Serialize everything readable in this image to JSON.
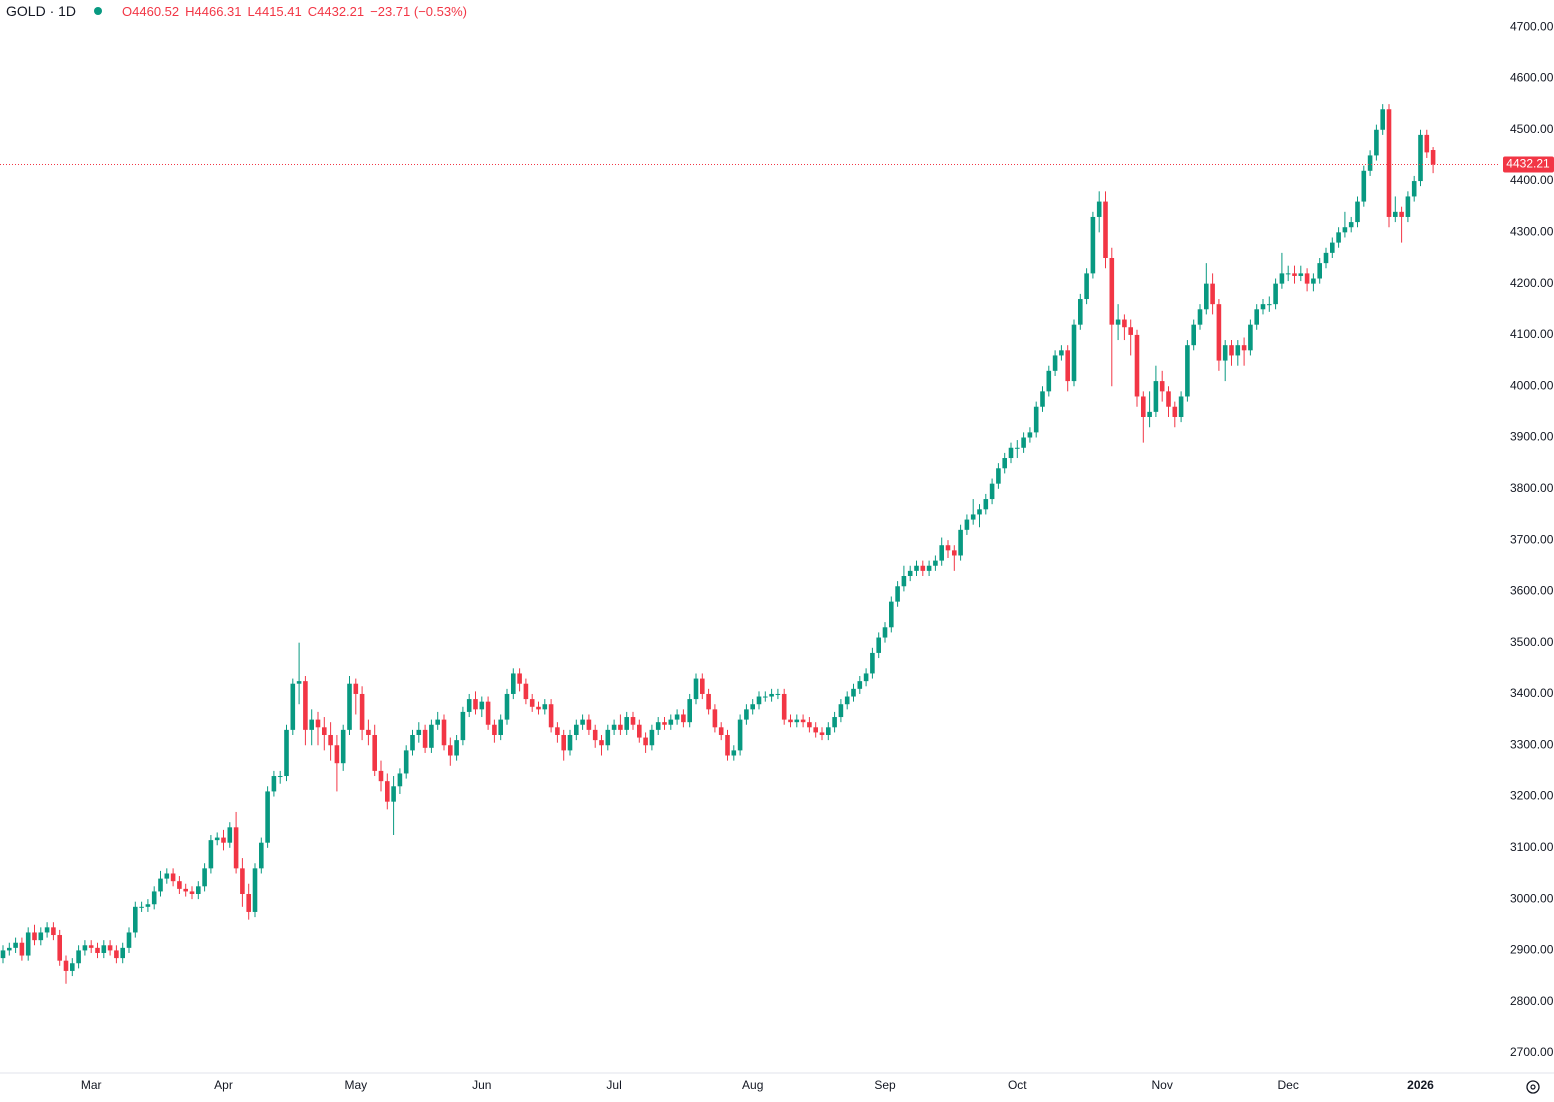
{
  "chart_data": {
    "type": "candlestick",
    "symbol": "GOLD · 1D",
    "header": {
      "open": "O4460.52",
      "high": "H4466.31",
      "low": "L4415.41",
      "close": "C4432.21",
      "change": "−23.71 (−0.53%)"
    },
    "up_color": "#089981",
    "down_color": "#f23645",
    "ylim": [
      2661,
      4753
    ],
    "yticks": [
      {
        "value": 2700,
        "label": "2700.00"
      },
      {
        "value": 2800,
        "label": "2800.00"
      },
      {
        "value": 2900,
        "label": "2900.00"
      },
      {
        "value": 3000,
        "label": "3000.00"
      },
      {
        "value": 3100,
        "label": "3100.00"
      },
      {
        "value": 3200,
        "label": "3200.00"
      },
      {
        "value": 3300,
        "label": "3300.00"
      },
      {
        "value": 3400,
        "label": "3400.00"
      },
      {
        "value": 3500,
        "label": "3500.00"
      },
      {
        "value": 3600,
        "label": "3600.00"
      },
      {
        "value": 3700,
        "label": "3700.00"
      },
      {
        "value": 3800,
        "label": "3800.00"
      },
      {
        "value": 3900,
        "label": "3900.00"
      },
      {
        "value": 4000,
        "label": "4000.00"
      },
      {
        "value": 4100,
        "label": "4100.00"
      },
      {
        "value": 4200,
        "label": "4200.00"
      },
      {
        "value": 4300,
        "label": "4300.00"
      },
      {
        "value": 4400,
        "label": "4400.00"
      },
      {
        "value": 4500,
        "label": "4500.00"
      },
      {
        "value": 4600,
        "label": "4600.00"
      },
      {
        "value": 4700,
        "label": "4700.00"
      }
    ],
    "categories": [
      null,
      null,
      null,
      null,
      null,
      null,
      null,
      null,
      null,
      null,
      null,
      null,
      null,
      null,
      "Mar",
      null,
      null,
      null,
      null,
      null,
      null,
      null,
      null,
      null,
      null,
      null,
      null,
      null,
      null,
      null,
      null,
      null,
      null,
      null,
      null,
      "Apr",
      null,
      null,
      null,
      null,
      null,
      null,
      null,
      null,
      null,
      null,
      null,
      null,
      null,
      null,
      null,
      null,
      null,
      null,
      null,
      null,
      "May",
      null,
      null,
      null,
      null,
      null,
      null,
      null,
      null,
      null,
      null,
      null,
      null,
      null,
      null,
      null,
      null,
      null,
      null,
      null,
      "Jun",
      null,
      null,
      null,
      null,
      null,
      null,
      null,
      null,
      null,
      null,
      null,
      null,
      null,
      null,
      null,
      null,
      null,
      null,
      null,
      null,
      "Jul",
      null,
      null,
      null,
      null,
      null,
      null,
      null,
      null,
      null,
      null,
      null,
      null,
      null,
      null,
      null,
      null,
      null,
      null,
      null,
      null,
      null,
      "Aug",
      null,
      null,
      null,
      null,
      null,
      null,
      null,
      null,
      null,
      null,
      null,
      null,
      null,
      null,
      null,
      null,
      null,
      null,
      null,
      null,
      "Sep",
      null,
      null,
      null,
      null,
      null,
      null,
      null,
      null,
      null,
      null,
      null,
      null,
      null,
      null,
      null,
      null,
      null,
      null,
      null,
      null,
      "Oct",
      null,
      null,
      null,
      null,
      null,
      null,
      null,
      null,
      null,
      null,
      null,
      null,
      null,
      null,
      null,
      null,
      null,
      null,
      null,
      null,
      null,
      null,
      "Nov",
      null,
      null,
      null,
      null,
      null,
      null,
      null,
      null,
      null,
      null,
      null,
      null,
      null,
      null,
      null,
      null,
      null,
      null,
      null,
      "Dec",
      null,
      null,
      null,
      null,
      null,
      null,
      null,
      null,
      null,
      null,
      null,
      null,
      null,
      null,
      null,
      null,
      null,
      null,
      null,
      null,
      "2026",
      null,
      null
    ],
    "open": [
      2885,
      2900,
      2905,
      2915,
      2890,
      2935,
      2920,
      2935,
      2945,
      2930,
      2880,
      2860,
      2875,
      2900,
      2910,
      2905,
      2895,
      2910,
      2900,
      2885,
      2905,
      2935,
      2985,
      2985,
      2990,
      3015,
      3040,
      3050,
      3035,
      3020,
      3015,
      3010,
      3025,
      3060,
      3115,
      3120,
      3110,
      3140,
      3060,
      3010,
      2975,
      3060,
      3110,
      3210,
      3240,
      3240,
      3330,
      3420,
      3425,
      3330,
      3350,
      3335,
      3320,
      3300,
      3265,
      3330,
      3420,
      3400,
      3330,
      3320,
      3250,
      3230,
      3190,
      3220,
      3245,
      3290,
      3320,
      3330,
      3295,
      3340,
      3350,
      3300,
      3280,
      3310,
      3365,
      3390,
      3370,
      3385,
      3340,
      3320,
      3350,
      3400,
      3440,
      3420,
      3390,
      3375,
      3370,
      3380,
      3335,
      3320,
      3290,
      3320,
      3340,
      3350,
      3330,
      3310,
      3300,
      3330,
      3340,
      3330,
      3355,
      3340,
      3315,
      3300,
      3330,
      3345,
      3340,
      3350,
      3360,
      3345,
      3390,
      3430,
      3400,
      3370,
      3335,
      3320,
      3280,
      3290,
      3350,
      3370,
      3380,
      3395,
      3395,
      3400,
      3400,
      3350,
      3345,
      3350,
      3345,
      3335,
      3325,
      3320,
      3335,
      3355,
      3380,
      3395,
      3410,
      3425,
      3440,
      3480,
      3510,
      3530,
      3580,
      3610,
      3630,
      3640,
      3650,
      3640,
      3650,
      3660,
      3690,
      3680,
      3670,
      3720,
      3740,
      3750,
      3760,
      3780,
      3810,
      3840,
      3860,
      3880,
      3880,
      3900,
      3910,
      3960,
      3990,
      4030,
      4060,
      4070,
      4010,
      4120,
      4170,
      4220,
      4330,
      4360,
      4250,
      4120,
      4130,
      4115,
      4100,
      3980,
      3940,
      3950,
      4010,
      3990,
      3960,
      3940,
      3980,
      4080,
      4120,
      4150,
      4200,
      4160,
      4050,
      4080,
      4060,
      4080,
      4070,
      4120,
      4150,
      4160,
      4160,
      4200,
      4220,
      4220,
      4215,
      4220,
      4200,
      4210,
      4240,
      4260,
      4280,
      4300,
      4310,
      4320,
      4360,
      4420,
      4450,
      4500,
      4540,
      4330,
      4340,
      4330,
      4370,
      4400,
      4490,
      4460.52
    ],
    "high": [
      2910,
      2915,
      2925,
      2925,
      2945,
      2950,
      2945,
      2955,
      2955,
      2940,
      2890,
      2885,
      2910,
      2920,
      2920,
      2915,
      2920,
      2920,
      2910,
      2915,
      2945,
      2995,
      2995,
      3000,
      3025,
      3055,
      3060,
      3060,
      3045,
      3030,
      3025,
      3035,
      3070,
      3125,
      3130,
      3135,
      3150,
      3170,
      3080,
      3030,
      3070,
      3120,
      3220,
      3250,
      3250,
      3340,
      3430,
      3500,
      3435,
      3370,
      3365,
      3355,
      3345,
      3320,
      3340,
      3435,
      3430,
      3415,
      3350,
      3340,
      3270,
      3245,
      3240,
      3255,
      3300,
      3330,
      3345,
      3340,
      3350,
      3365,
      3360,
      3315,
      3320,
      3375,
      3400,
      3405,
      3395,
      3395,
      3350,
      3360,
      3410,
      3450,
      3450,
      3430,
      3400,
      3385,
      3390,
      3390,
      3345,
      3330,
      3330,
      3350,
      3360,
      3360,
      3340,
      3320,
      3340,
      3350,
      3360,
      3365,
      3365,
      3350,
      3325,
      3340,
      3355,
      3355,
      3360,
      3370,
      3370,
      3400,
      3440,
      3440,
      3410,
      3380,
      3345,
      3330,
      3300,
      3360,
      3380,
      3390,
      3405,
      3405,
      3410,
      3410,
      3410,
      3360,
      3360,
      3360,
      3355,
      3345,
      3335,
      3345,
      3365,
      3390,
      3405,
      3420,
      3435,
      3450,
      3490,
      3520,
      3540,
      3590,
      3620,
      3650,
      3650,
      3660,
      3660,
      3660,
      3670,
      3705,
      3700,
      3690,
      3730,
      3750,
      3780,
      3770,
      3790,
      3820,
      3850,
      3870,
      3890,
      3895,
      3910,
      3920,
      3970,
      4000,
      4040,
      4070,
      4080,
      4080,
      4130,
      4180,
      4230,
      4340,
      4380,
      4380,
      4270,
      4160,
      4140,
      4130,
      4110,
      3990,
      3990,
      4040,
      4030,
      4000,
      3970,
      3990,
      4090,
      4130,
      4160,
      4240,
      4220,
      4170,
      4090,
      4090,
      4090,
      4095,
      4130,
      4160,
      4170,
      4175,
      4210,
      4260,
      4235,
      4235,
      4235,
      4230,
      4220,
      4250,
      4270,
      4290,
      4310,
      4340,
      4330,
      4370,
      4430,
      4460,
      4510,
      4550,
      4550,
      4370,
      4350,
      4380,
      4410,
      4500,
      4500,
      4466.31
    ],
    "low": [
      2875,
      2890,
      2895,
      2880,
      2880,
      2910,
      2910,
      2925,
      2920,
      2870,
      2835,
      2850,
      2865,
      2890,
      2895,
      2885,
      2885,
      2890,
      2875,
      2875,
      2895,
      2925,
      2975,
      2975,
      2980,
      3005,
      3030,
      3025,
      3010,
      3005,
      3000,
      3000,
      3015,
      3050,
      3105,
      3095,
      3100,
      3050,
      2985,
      2960,
      2965,
      3050,
      3100,
      3200,
      3225,
      3230,
      3320,
      3380,
      3300,
      3300,
      3300,
      3290,
      3270,
      3210,
      3250,
      3320,
      3360,
      3310,
      3300,
      3240,
      3210,
      3175,
      3125,
      3205,
      3235,
      3280,
      3305,
      3285,
      3285,
      3330,
      3290,
      3260,
      3270,
      3300,
      3355,
      3360,
      3355,
      3330,
      3305,
      3310,
      3340,
      3390,
      3405,
      3380,
      3365,
      3360,
      3360,
      3325,
      3305,
      3270,
      3280,
      3310,
      3330,
      3320,
      3295,
      3280,
      3290,
      3320,
      3320,
      3320,
      3330,
      3305,
      3285,
      3290,
      3320,
      3330,
      3330,
      3340,
      3335,
      3335,
      3380,
      3390,
      3360,
      3325,
      3310,
      3270,
      3270,
      3280,
      3340,
      3360,
      3370,
      3385,
      3385,
      3390,
      3340,
      3335,
      3335,
      3335,
      3325,
      3315,
      3310,
      3310,
      3325,
      3345,
      3370,
      3385,
      3400,
      3415,
      3430,
      3470,
      3500,
      3520,
      3570,
      3600,
      3620,
      3630,
      3630,
      3630,
      3640,
      3650,
      3665,
      3640,
      3660,
      3710,
      3730,
      3725,
      3750,
      3770,
      3800,
      3830,
      3850,
      3860,
      3870,
      3890,
      3900,
      3950,
      3980,
      4020,
      4050,
      3990,
      4000,
      4110,
      4160,
      4210,
      4300,
      4230,
      4000,
      4090,
      4090,
      4060,
      3960,
      3890,
      3920,
      3940,
      3970,
      3940,
      3920,
      3930,
      3970,
      4070,
      4110,
      4140,
      4140,
      4030,
      4010,
      4040,
      4040,
      4040,
      4060,
      4110,
      4140,
      4145,
      4150,
      4190,
      4205,
      4200,
      4205,
      4185,
      4185,
      4200,
      4230,
      4250,
      4270,
      4290,
      4300,
      4310,
      4350,
      4410,
      4440,
      4490,
      4310,
      4320,
      4280,
      4320,
      4360,
      4390,
      4445,
      4415.41
    ],
    "close": [
      2900,
      2905,
      2915,
      2890,
      2935,
      2920,
      2935,
      2945,
      2930,
      2880,
      2860,
      2875,
      2900,
      2910,
      2905,
      2895,
      2910,
      2900,
      2885,
      2905,
      2935,
      2985,
      2985,
      2990,
      3015,
      3040,
      3050,
      3035,
      3020,
      3015,
      3010,
      3025,
      3060,
      3115,
      3120,
      3110,
      3140,
      3060,
      3010,
      2975,
      3060,
      3110,
      3210,
      3240,
      3240,
      3330,
      3420,
      3425,
      3330,
      3350,
      3335,
      3320,
      3300,
      3265,
      3330,
      3420,
      3400,
      3330,
      3320,
      3250,
      3230,
      3190,
      3220,
      3245,
      3290,
      3320,
      3330,
      3295,
      3340,
      3350,
      3300,
      3280,
      3310,
      3365,
      3390,
      3370,
      3385,
      3340,
      3320,
      3350,
      3400,
      3440,
      3420,
      3390,
      3375,
      3370,
      3380,
      3335,
      3320,
      3290,
      3320,
      3340,
      3350,
      3330,
      3310,
      3300,
      3330,
      3340,
      3330,
      3355,
      3340,
      3315,
      3300,
      3330,
      3345,
      3340,
      3350,
      3360,
      3345,
      3390,
      3430,
      3400,
      3370,
      3335,
      3320,
      3280,
      3290,
      3350,
      3370,
      3380,
      3395,
      3395,
      3400,
      3400,
      3350,
      3345,
      3350,
      3345,
      3335,
      3325,
      3320,
      3335,
      3355,
      3380,
      3395,
      3410,
      3425,
      3440,
      3480,
      3510,
      3530,
      3580,
      3610,
      3630,
      3640,
      3650,
      3640,
      3650,
      3660,
      3690,
      3680,
      3670,
      3720,
      3740,
      3750,
      3760,
      3780,
      3810,
      3840,
      3860,
      3880,
      3880,
      3900,
      3910,
      3960,
      3990,
      4030,
      4060,
      4070,
      4010,
      4120,
      4170,
      4220,
      4330,
      4360,
      4250,
      4120,
      4130,
      4115,
      4100,
      3980,
      3940,
      3950,
      4010,
      3990,
      3960,
      3940,
      3980,
      4080,
      4120,
      4150,
      4200,
      4160,
      4050,
      4080,
      4060,
      4080,
      4070,
      4120,
      4150,
      4160,
      4160,
      4200,
      4220,
      4220,
      4215,
      4220,
      4200,
      4210,
      4240,
      4260,
      4280,
      4300,
      4310,
      4320,
      4360,
      4420,
      4450,
      4500,
      4540,
      4330,
      4340,
      4330,
      4370,
      4400,
      4490,
      4455.92,
      4432.21
    ]
  }
}
